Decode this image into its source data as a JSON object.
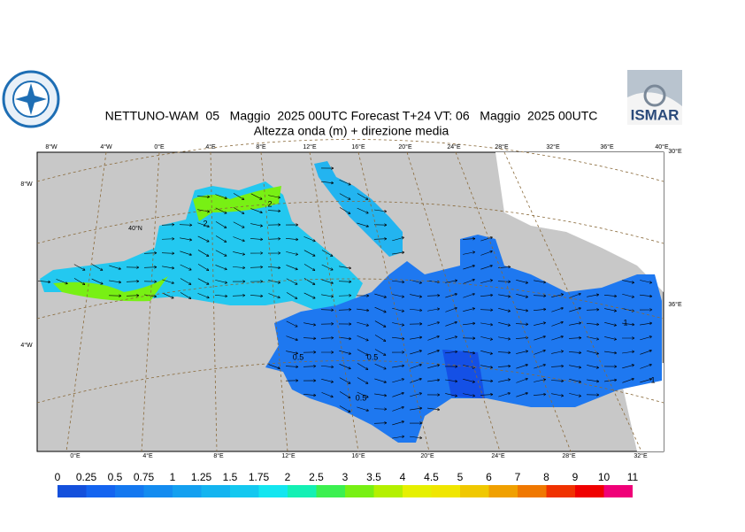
{
  "header": {
    "title": "NETTUNO-WAM  05   Maggio  2025 00UTC Forecast T+24 VT: 06   Maggio  2025 00UTC",
    "subtitle": "Altezza onda (m) + direzione media",
    "logo_text": "ISMAR"
  },
  "map": {
    "top_labels": [
      "8°W",
      "4°W",
      "0°E",
      "4°E",
      "8°E",
      "12°E",
      "16°E",
      "20°E",
      "24°E",
      "28°E",
      "32°E",
      "36°E",
      "40°E",
      "30°E"
    ],
    "left_labels": [
      "8°W",
      "40°N",
      "4°W"
    ],
    "right_labels": [
      "36°E"
    ],
    "bottom_labels": [
      "0°E",
      "4°E",
      "8°E",
      "12°E",
      "16°E",
      "20°E",
      "24°E",
      "28°E",
      "32°E"
    ],
    "contour_labels": [
      "2",
      "2",
      "0.5",
      "0.5",
      "0.5",
      "1",
      "1"
    ]
  },
  "colorbar": {
    "ticks": [
      0,
      0.25,
      0.5,
      0.75,
      1,
      1.25,
      1.5,
      1.75,
      2,
      2.5,
      3,
      3.5,
      4,
      4.5,
      5,
      6,
      7,
      8,
      9,
      10,
      11
    ],
    "colors": [
      "#1450dc",
      "#1464f0",
      "#1478f0",
      "#148cf0",
      "#14a0f0",
      "#14b4f0",
      "#14c8f0",
      "#14e6f0",
      "#14f0b4",
      "#3cf050",
      "#78f014",
      "#b4f000",
      "#e6f000",
      "#f0e600",
      "#f0c800",
      "#f0a000",
      "#f07800",
      "#f03200",
      "#f00000",
      "#f00078"
    ]
  }
}
